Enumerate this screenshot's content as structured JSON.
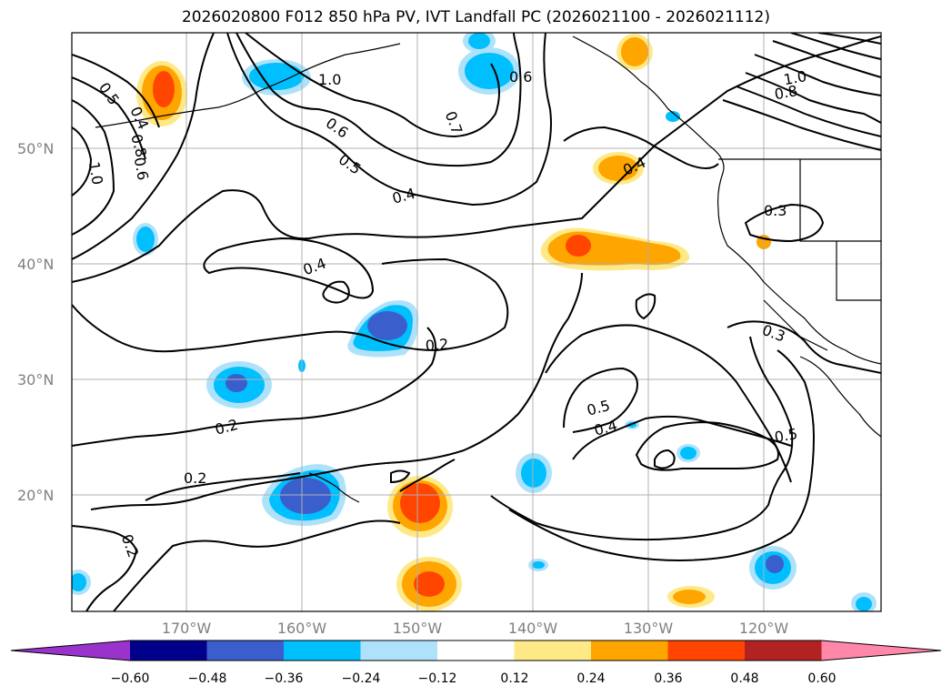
{
  "title": "2026020800 F012 850 hPa PV, IVT Landfall PC (2026021100 - 2026021112)",
  "map": {
    "lat_labels": [
      "50°N",
      "40°N",
      "30°N",
      "20°N"
    ],
    "lon_labels": [
      "170°W",
      "160°W",
      "150°W",
      "140°W",
      "130°W",
      "120°W"
    ],
    "contour_labels": [
      "0.5",
      "0.4",
      "0.8",
      "0.6",
      "1.0",
      "1.0",
      "0.6",
      "0.7",
      "0.6",
      "0.5",
      "0.4",
      "0.4",
      "0.4",
      "0.3",
      "0.2",
      "0.2",
      "0.2",
      "0.2",
      "0.5",
      "0.4",
      "0.5",
      "0.3",
      "1.0",
      "0.8"
    ]
  },
  "colorbar": {
    "ticks": [
      "−0.60",
      "−0.48",
      "−0.36",
      "−0.24",
      "−0.12",
      "0.12",
      "0.24",
      "0.36",
      "0.48",
      "0.60"
    ],
    "colors": [
      "#9933cc",
      "#00008b",
      "#3a5fcd",
      "#00bfff",
      "#aee2fa",
      "#ffffff",
      "#ffe987",
      "#ffa500",
      "#ff4500",
      "#b22222",
      "#ff88aa"
    ]
  }
}
